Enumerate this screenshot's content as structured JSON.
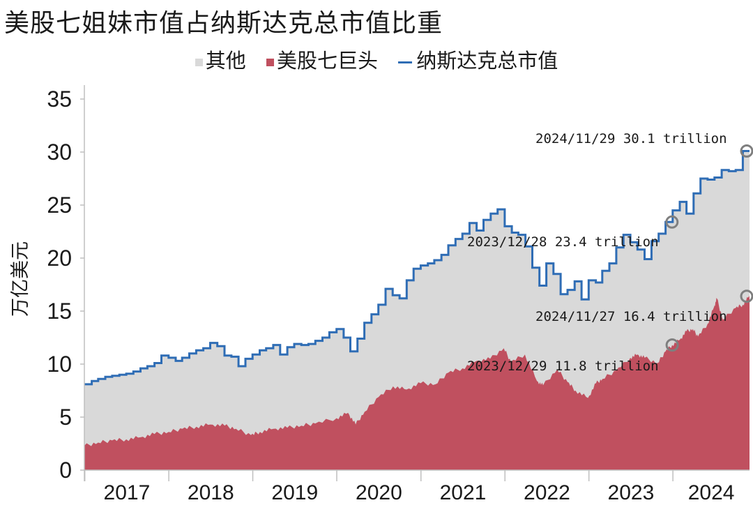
{
  "chart_data": {
    "type": "area",
    "title": "美股七姐妹市值占纳斯达克总市值比重",
    "ylabel": "万亿美元",
    "xlabel": "",
    "ylim": [
      0,
      35
    ],
    "yticks": [
      "0",
      "5",
      "10",
      "15",
      "20",
      "25",
      "30",
      "35"
    ],
    "xticks": [
      "2017",
      "2018",
      "2019",
      "2020",
      "2021",
      "2022",
      "2023",
      "2024"
    ],
    "xlim": [
      "2016-12-30",
      "2024-11-29"
    ],
    "grid": false,
    "legend_position": "top",
    "series": [
      {
        "name": "其他",
        "kind": "area",
        "color": "#d9d9d9",
        "note_fill": "fills from 美股七巨头 up to 纳斯达克总市值"
      },
      {
        "name": "美股七巨头",
        "kind": "area",
        "color": "#c0505f",
        "points": [
          [
            "2016-12-30",
            2.3
          ],
          [
            "2017-02-28",
            2.6
          ],
          [
            "2017-04-30",
            2.8
          ],
          [
            "2017-06-30",
            2.9
          ],
          [
            "2017-08-31",
            3.1
          ],
          [
            "2017-10-31",
            3.4
          ],
          [
            "2017-12-31",
            3.6
          ],
          [
            "2018-03-01",
            3.9
          ],
          [
            "2018-05-01",
            4.1
          ],
          [
            "2018-07-01",
            4.3
          ],
          [
            "2018-09-01",
            4.2
          ],
          [
            "2018-10-20",
            3.9
          ],
          [
            "2018-12-24",
            3.3
          ],
          [
            "2019-02-01",
            3.6
          ],
          [
            "2019-04-01",
            3.9
          ],
          [
            "2019-05-31",
            4.0
          ],
          [
            "2019-07-31",
            4.2
          ],
          [
            "2019-09-30",
            4.4
          ],
          [
            "2019-12-31",
            4.9
          ],
          [
            "2020-02-19",
            5.4
          ],
          [
            "2020-03-23",
            4.3
          ],
          [
            "2020-05-01",
            5.5
          ],
          [
            "2020-07-01",
            6.9
          ],
          [
            "2020-09-02",
            7.9
          ],
          [
            "2020-10-30",
            7.6
          ],
          [
            "2020-12-31",
            8.2
          ],
          [
            "2021-03-05",
            8.1
          ],
          [
            "2021-04-30",
            9.2
          ],
          [
            "2021-06-30",
            9.6
          ],
          [
            "2021-08-31",
            10.3
          ],
          [
            "2021-10-29",
            10.5
          ],
          [
            "2021-12-27",
            11.5
          ],
          [
            "2022-01-27",
            10.2
          ],
          [
            "2022-03-29",
            10.9
          ],
          [
            "2022-05-20",
            8.4
          ],
          [
            "2022-06-16",
            8.0
          ],
          [
            "2022-08-16",
            9.5
          ],
          [
            "2022-09-30",
            8.3
          ],
          [
            "2022-11-04",
            7.5
          ],
          [
            "2022-12-28",
            6.8
          ],
          [
            "2023-02-01",
            8.2
          ],
          [
            "2023-03-01",
            8.6
          ],
          [
            "2023-04-30",
            9.4
          ],
          [
            "2023-06-30",
            10.6
          ],
          [
            "2023-07-31",
            10.9
          ],
          [
            "2023-08-31",
            10.6
          ],
          [
            "2023-10-27",
            10.1
          ],
          [
            "2023-11-30",
            11.2
          ],
          [
            "2023-12-29",
            11.8
          ],
          [
            "2024-01-31",
            12.3
          ],
          [
            "2024-02-29",
            13.1
          ],
          [
            "2024-03-28",
            13.3
          ],
          [
            "2024-04-19",
            12.6
          ],
          [
            "2024-05-31",
            13.8
          ],
          [
            "2024-06-28",
            15.4
          ],
          [
            "2024-07-10",
            16.2
          ],
          [
            "2024-08-05",
            14.2
          ],
          [
            "2024-09-30",
            15.3
          ],
          [
            "2024-10-31",
            15.6
          ],
          [
            "2024-11-27",
            16.4
          ],
          [
            "2024-11-29",
            16.4
          ]
        ]
      },
      {
        "name": "纳斯达克总市值",
        "kind": "step-line",
        "color": "#2f6db5",
        "points": [
          [
            "2016-12-30",
            8.1
          ],
          [
            "2017-01-31",
            8.4
          ],
          [
            "2017-02-28",
            8.6
          ],
          [
            "2017-03-31",
            8.8
          ],
          [
            "2017-04-30",
            8.9
          ],
          [
            "2017-05-31",
            9.0
          ],
          [
            "2017-06-30",
            9.1
          ],
          [
            "2017-07-31",
            9.3
          ],
          [
            "2017-08-31",
            9.6
          ],
          [
            "2017-09-30",
            9.8
          ],
          [
            "2017-10-31",
            10.1
          ],
          [
            "2017-11-30",
            10.8
          ],
          [
            "2017-12-31",
            10.6
          ],
          [
            "2018-01-31",
            10.3
          ],
          [
            "2018-02-28",
            10.6
          ],
          [
            "2018-03-31",
            11.0
          ],
          [
            "2018-04-30",
            11.3
          ],
          [
            "2018-05-31",
            11.5
          ],
          [
            "2018-06-30",
            12.0
          ],
          [
            "2018-07-31",
            11.7
          ],
          [
            "2018-08-31",
            10.8
          ],
          [
            "2018-09-30",
            10.7
          ],
          [
            "2018-10-31",
            9.8
          ],
          [
            "2018-11-30",
            10.5
          ],
          [
            "2018-12-31",
            10.9
          ],
          [
            "2019-01-31",
            11.3
          ],
          [
            "2019-02-28",
            11.5
          ],
          [
            "2019-03-31",
            11.8
          ],
          [
            "2019-04-30",
            10.9
          ],
          [
            "2019-05-31",
            11.6
          ],
          [
            "2019-06-30",
            11.9
          ],
          [
            "2019-07-31",
            11.8
          ],
          [
            "2019-08-31",
            11.9
          ],
          [
            "2019-09-30",
            12.2
          ],
          [
            "2019-10-31",
            12.5
          ],
          [
            "2019-11-30",
            13.0
          ],
          [
            "2019-12-31",
            13.3
          ],
          [
            "2020-01-31",
            12.5
          ],
          [
            "2020-02-29",
            11.2
          ],
          [
            "2020-03-31",
            12.4
          ],
          [
            "2020-04-30",
            13.9
          ],
          [
            "2020-05-31",
            14.7
          ],
          [
            "2020-06-30",
            15.6
          ],
          [
            "2020-07-31",
            17.1
          ],
          [
            "2020-08-31",
            16.5
          ],
          [
            "2020-09-30",
            16.2
          ],
          [
            "2020-10-31",
            17.9
          ],
          [
            "2020-11-30",
            19.0
          ],
          [
            "2020-12-31",
            19.3
          ],
          [
            "2021-01-31",
            19.5
          ],
          [
            "2021-02-28",
            19.8
          ],
          [
            "2021-03-31",
            20.3
          ],
          [
            "2021-04-30",
            21.2
          ],
          [
            "2021-05-31",
            21.8
          ],
          [
            "2021-06-30",
            22.3
          ],
          [
            "2021-07-31",
            23.3
          ],
          [
            "2021-08-31",
            22.6
          ],
          [
            "2021-09-30",
            23.6
          ],
          [
            "2021-10-31",
            24.2
          ],
          [
            "2021-11-30",
            24.6
          ],
          [
            "2021-12-31",
            23.0
          ],
          [
            "2022-01-31",
            22.4
          ],
          [
            "2022-02-28",
            22.2
          ],
          [
            "2022-03-31",
            21.1
          ],
          [
            "2022-04-30",
            19.1
          ],
          [
            "2022-05-31",
            17.4
          ],
          [
            "2022-06-30",
            19.5
          ],
          [
            "2022-07-31",
            18.5
          ],
          [
            "2022-08-31",
            16.6
          ],
          [
            "2022-09-30",
            17.0
          ],
          [
            "2022-10-31",
            17.8
          ],
          [
            "2022-11-30",
            16.1
          ],
          [
            "2022-12-31",
            17.9
          ],
          [
            "2023-01-31",
            17.7
          ],
          [
            "2023-02-28",
            18.8
          ],
          [
            "2023-03-31",
            19.5
          ],
          [
            "2023-04-30",
            21.0
          ],
          [
            "2023-05-31",
            22.2
          ],
          [
            "2023-06-30",
            21.5
          ],
          [
            "2023-07-31",
            20.8
          ],
          [
            "2023-08-31",
            19.9
          ],
          [
            "2023-09-30",
            21.6
          ],
          [
            "2023-10-31",
            22.3
          ],
          [
            "2023-11-30",
            23.4
          ],
          [
            "2023-12-31",
            24.5
          ],
          [
            "2024-01-31",
            25.3
          ],
          [
            "2024-02-29",
            24.2
          ],
          [
            "2024-03-31",
            26.1
          ],
          [
            "2024-04-30",
            27.5
          ],
          [
            "2024-05-31",
            27.4
          ],
          [
            "2024-06-30",
            27.6
          ],
          [
            "2024-07-31",
            28.3
          ],
          [
            "2024-08-31",
            28.2
          ],
          [
            "2024-09-30",
            28.3
          ],
          [
            "2024-10-31",
            30.1
          ],
          [
            "2024-11-29",
            30.1
          ]
        ]
      }
    ],
    "annotations": [
      {
        "text": "2024/11/29 30.1 trillion",
        "date": "2024-11-29",
        "value": 30.1,
        "series": "纳斯达克总市值"
      },
      {
        "text": "2023/12/28 23.4 trillion",
        "date": "2023-12-28",
        "value": 23.4,
        "series": "纳斯达克总市值"
      },
      {
        "text": "2024/11/27 16.4 trillion",
        "date": "2024-11-27",
        "value": 16.4,
        "series": "美股七巨头"
      },
      {
        "text": "2023/12/29 11.8 trillion",
        "date": "2023-12-29",
        "value": 11.8,
        "series": "美股七巨头"
      }
    ]
  }
}
